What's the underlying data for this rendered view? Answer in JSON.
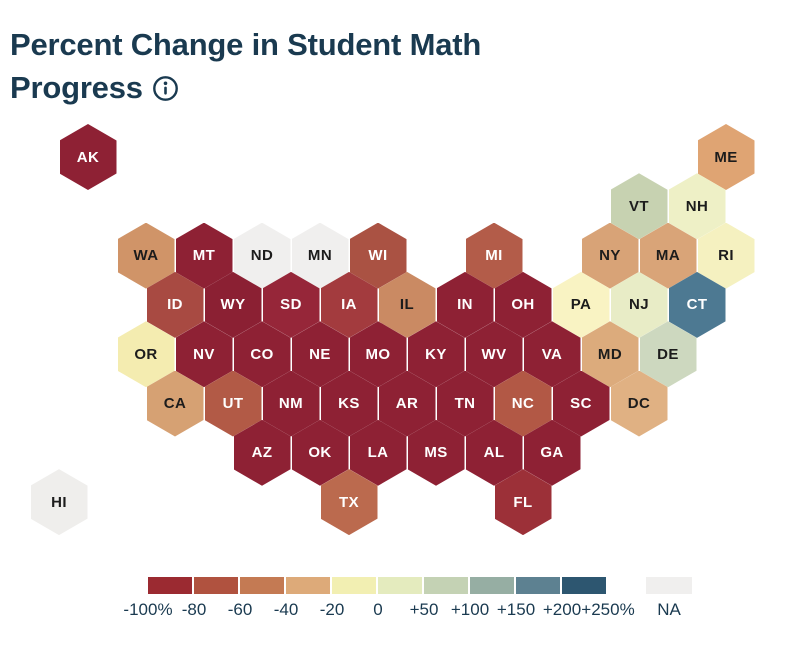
{
  "title": {
    "text": "Percent Change in Student Math Progress",
    "color": "#1a3a50",
    "info_icon": "info-circle-icon"
  },
  "chart_data": {
    "type": "heatmap",
    "subtype": "us-state-hex-tile-cartogram",
    "title": "Percent Change in Student Math Progress",
    "unit": "percent change",
    "legend": {
      "tick_labels": [
        "-100%",
        "-80",
        "-60",
        "-40",
        "-20",
        "0",
        "+50",
        "+100",
        "+150",
        "+200",
        "+250%"
      ],
      "thresholds": [
        -100,
        -80,
        -60,
        -40,
        -20,
        0,
        50,
        100,
        150,
        200,
        250
      ],
      "block_colors": [
        "#9b2a31",
        "#b0523f",
        "#c47a53",
        "#ddaa79",
        "#f2efb2",
        "#e4ebbe",
        "#c4d2b4",
        "#96aea3",
        "#5d8191",
        "#2d5670"
      ],
      "na": {
        "label": "NA",
        "color": "#f0efee"
      },
      "label_color": "#1a3a50",
      "position": "bottom"
    },
    "states": [
      {
        "abbr": "AK",
        "row": 0,
        "col": -1,
        "color": "#8e2134",
        "text": "light",
        "bucket": "-100 to -80"
      },
      {
        "abbr": "ME",
        "row": 0,
        "col": 10,
        "color": "#dfa473",
        "text": "dark",
        "bucket": "-40 to -20"
      },
      {
        "abbr": "VT",
        "row": 1,
        "col": 8,
        "color": "#c7d2b1",
        "text": "dark",
        "bucket": "+50 to +100"
      },
      {
        "abbr": "NH",
        "row": 1,
        "col": 9,
        "color": "#eef0c6",
        "text": "dark",
        "bucket": "0 to +50"
      },
      {
        "abbr": "WA",
        "row": 2,
        "col": 0,
        "color": "#d09468",
        "text": "dark",
        "bucket": "-40 to -20"
      },
      {
        "abbr": "MT",
        "row": 2,
        "col": 1,
        "color": "#8e2134",
        "text": "light",
        "bucket": "-100 to -80"
      },
      {
        "abbr": "ND",
        "row": 2,
        "col": 2,
        "color": "#f0efee",
        "text": "dark",
        "bucket": "NA"
      },
      {
        "abbr": "MN",
        "row": 2,
        "col": 3,
        "color": "#f0efee",
        "text": "dark",
        "bucket": "NA"
      },
      {
        "abbr": "WI",
        "row": 2,
        "col": 4,
        "color": "#aa5243",
        "text": "light",
        "bucket": "-80 to -60"
      },
      {
        "abbr": "MI",
        "row": 2,
        "col": 6,
        "color": "#b35c49",
        "text": "light",
        "bucket": "-80 to -60"
      },
      {
        "abbr": "NY",
        "row": 2,
        "col": 8,
        "color": "#d8a377",
        "text": "dark",
        "bucket": "-40 to -20"
      },
      {
        "abbr": "MA",
        "row": 2,
        "col": 9,
        "color": "#d9a478",
        "text": "dark",
        "bucket": "-40 to -20"
      },
      {
        "abbr": "RI",
        "row": 2,
        "col": 10,
        "color": "#f5f1c0",
        "text": "dark",
        "bucket": "-20 to 0"
      },
      {
        "abbr": "ID",
        "row": 3,
        "col": 0,
        "color": "#a84a42",
        "text": "light",
        "bucket": "-80 to -60"
      },
      {
        "abbr": "WY",
        "row": 3,
        "col": 1,
        "color": "#8b2033",
        "text": "light",
        "bucket": "-100 to -80"
      },
      {
        "abbr": "SD",
        "row": 3,
        "col": 2,
        "color": "#962639",
        "text": "light",
        "bucket": "-100 to -80"
      },
      {
        "abbr": "IA",
        "row": 3,
        "col": 3,
        "color": "#a33b3e",
        "text": "light",
        "bucket": "-80 to -60"
      },
      {
        "abbr": "IL",
        "row": 3,
        "col": 4,
        "color": "#ca8a63",
        "text": "dark",
        "bucket": "-60 to -40"
      },
      {
        "abbr": "IN",
        "row": 3,
        "col": 5,
        "color": "#8e2134",
        "text": "light",
        "bucket": "-100 to -80"
      },
      {
        "abbr": "OH",
        "row": 3,
        "col": 6,
        "color": "#8e2134",
        "text": "light",
        "bucket": "-100 to -80"
      },
      {
        "abbr": "PA",
        "row": 3,
        "col": 7,
        "color": "#f9f3c3",
        "text": "dark",
        "bucket": "-20 to 0"
      },
      {
        "abbr": "NJ",
        "row": 3,
        "col": 8,
        "color": "#e8ecc6",
        "text": "dark",
        "bucket": "0 to +50"
      },
      {
        "abbr": "CT",
        "row": 3,
        "col": 9,
        "color": "#4d7992",
        "text": "light",
        "bucket": "+150 to +200"
      },
      {
        "abbr": "OR",
        "row": 4,
        "col": 0,
        "color": "#f4ecb0",
        "text": "dark",
        "bucket": "-20 to 0"
      },
      {
        "abbr": "NV",
        "row": 4,
        "col": 1,
        "color": "#8e2134",
        "text": "light",
        "bucket": "-100 to -80"
      },
      {
        "abbr": "CO",
        "row": 4,
        "col": 2,
        "color": "#8e2134",
        "text": "light",
        "bucket": "-100 to -80"
      },
      {
        "abbr": "NE",
        "row": 4,
        "col": 3,
        "color": "#8e2134",
        "text": "light",
        "bucket": "-100 to -80"
      },
      {
        "abbr": "MO",
        "row": 4,
        "col": 4,
        "color": "#8e2134",
        "text": "light",
        "bucket": "-100 to -80"
      },
      {
        "abbr": "KY",
        "row": 4,
        "col": 5,
        "color": "#8e2134",
        "text": "light",
        "bucket": "-100 to -80"
      },
      {
        "abbr": "WV",
        "row": 4,
        "col": 6,
        "color": "#8e2134",
        "text": "light",
        "bucket": "-100 to -80"
      },
      {
        "abbr": "VA",
        "row": 4,
        "col": 7,
        "color": "#8e2134",
        "text": "light",
        "bucket": "-100 to -80"
      },
      {
        "abbr": "MD",
        "row": 4,
        "col": 8,
        "color": "#dcab7c",
        "text": "dark",
        "bucket": "-40 to -20"
      },
      {
        "abbr": "DE",
        "row": 4,
        "col": 9,
        "color": "#cdd8bf",
        "text": "dark",
        "bucket": "+50 to +100"
      },
      {
        "abbr": "CA",
        "row": 5,
        "col": 0,
        "color": "#d6a173",
        "text": "dark",
        "bucket": "-40 to -20"
      },
      {
        "abbr": "UT",
        "row": 5,
        "col": 1,
        "color": "#b25a46",
        "text": "light",
        "bucket": "-80 to -60"
      },
      {
        "abbr": "NM",
        "row": 5,
        "col": 2,
        "color": "#8e2134",
        "text": "light",
        "bucket": "-100 to -80"
      },
      {
        "abbr": "KS",
        "row": 5,
        "col": 3,
        "color": "#8e2134",
        "text": "light",
        "bucket": "-100 to -80"
      },
      {
        "abbr": "AR",
        "row": 5,
        "col": 4,
        "color": "#8e2134",
        "text": "light",
        "bucket": "-100 to -80"
      },
      {
        "abbr": "TN",
        "row": 5,
        "col": 5,
        "color": "#8e2134",
        "text": "light",
        "bucket": "-100 to -80"
      },
      {
        "abbr": "NC",
        "row": 5,
        "col": 6,
        "color": "#b25845",
        "text": "light",
        "bucket": "-80 to -60"
      },
      {
        "abbr": "SC",
        "row": 5,
        "col": 7,
        "color": "#8e2134",
        "text": "light",
        "bucket": "-100 to -80"
      },
      {
        "abbr": "DC",
        "row": 5,
        "col": 8,
        "color": "#e0b183",
        "text": "dark",
        "bucket": "-40 to -20"
      },
      {
        "abbr": "AZ",
        "row": 6,
        "col": 2,
        "color": "#8e2134",
        "text": "light",
        "bucket": "-100 to -80"
      },
      {
        "abbr": "OK",
        "row": 6,
        "col": 3,
        "color": "#8e2134",
        "text": "light",
        "bucket": "-100 to -80"
      },
      {
        "abbr": "LA",
        "row": 6,
        "col": 4,
        "color": "#8e2134",
        "text": "light",
        "bucket": "-100 to -80"
      },
      {
        "abbr": "MS",
        "row": 6,
        "col": 5,
        "color": "#8e2134",
        "text": "light",
        "bucket": "-100 to -80"
      },
      {
        "abbr": "AL",
        "row": 6,
        "col": 6,
        "color": "#8e2134",
        "text": "light",
        "bucket": "-100 to -80"
      },
      {
        "abbr": "GA",
        "row": 6,
        "col": 7,
        "color": "#8e2134",
        "text": "light",
        "bucket": "-100 to -80"
      },
      {
        "abbr": "HI",
        "row": 7,
        "col": -2,
        "color": "#efeeec",
        "text": "dark",
        "bucket": "NA"
      },
      {
        "abbr": "TX",
        "row": 7,
        "col": 3,
        "color": "#bb6a4e",
        "text": "light",
        "bucket": "-60 to -40"
      },
      {
        "abbr": "FL",
        "row": 7,
        "col": 6,
        "color": "#9c3038",
        "text": "light",
        "bucket": "-100 to -80"
      }
    ]
  }
}
